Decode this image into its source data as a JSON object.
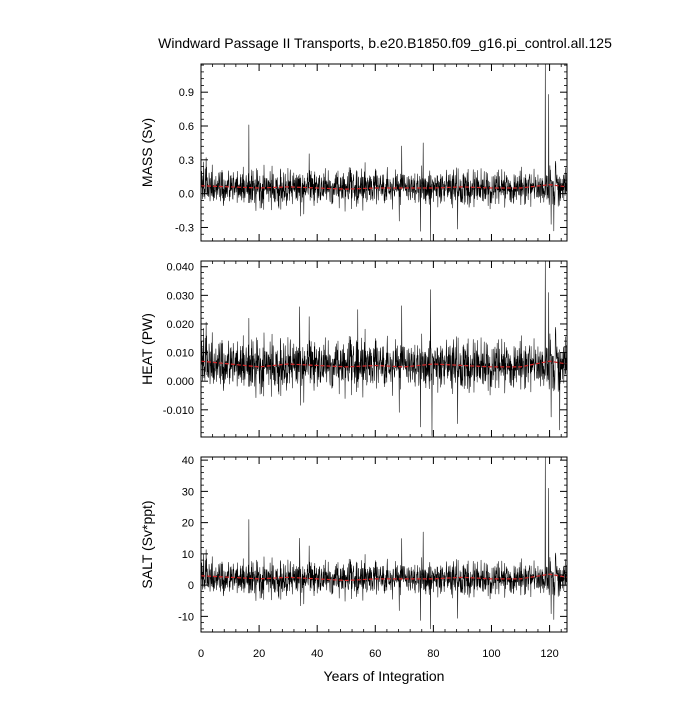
{
  "title": "Windward Passage II Transports, b.e20.B1850.f09_g16.pi_control.all.125",
  "chart_data": {
    "type": "line",
    "title": "Windward Passage II Transports, b.e20.B1850.f09_g16.pi_control.all.125",
    "xlabel": "Years of Integration",
    "xlim": [
      0,
      126
    ],
    "x_ticks": [
      0,
      20,
      40,
      60,
      80,
      100,
      120
    ],
    "x_tick_labels": [
      "0",
      "20",
      "40",
      "60",
      "80",
      "100",
      "120"
    ],
    "colors": {
      "raw": "#000000",
      "smoothed": "#d62728"
    },
    "panels": [
      {
        "ylabel": "MASS (Sv)",
        "ylim": [
          -0.42,
          1.15
        ],
        "y_ticks": [
          -0.3,
          0.0,
          0.3,
          0.6,
          0.9
        ],
        "y_tick_labels": [
          "-0.3",
          "0.0",
          "0.3",
          "0.6",
          "0.9"
        ],
        "mean": 0.05,
        "noise_sd": 0.075,
        "spikes": [
          [
            16.5,
            0.61
          ],
          [
            118.5,
            1.15
          ],
          [
            119.7,
            0.88
          ],
          [
            79.0,
            -0.42
          ],
          [
            76.5,
            0.45
          ],
          [
            121.5,
            -0.33
          ]
        ],
        "smoothed": {
          "x": [
            0,
            10,
            20,
            30,
            40,
            50,
            60,
            70,
            80,
            90,
            100,
            110,
            120,
            126
          ],
          "y": [
            0.07,
            0.06,
            0.05,
            0.06,
            0.05,
            0.04,
            0.05,
            0.05,
            0.05,
            0.06,
            0.05,
            0.05,
            0.08,
            0.06
          ]
        }
      },
      {
        "ylabel": "HEAT (PW)",
        "ylim": [
          -0.0195,
          0.042
        ],
        "y_ticks": [
          -0.01,
          0.0,
          0.01,
          0.02,
          0.03,
          0.04
        ],
        "y_tick_labels": [
          "-0.010",
          "0.000",
          "0.010",
          "0.020",
          "0.030",
          "0.040"
        ],
        "mean": 0.0055,
        "noise_sd": 0.0042,
        "spikes": [
          [
            16.5,
            0.022
          ],
          [
            34.0,
            0.026
          ],
          [
            54.0,
            0.025
          ],
          [
            79.0,
            0.032
          ],
          [
            79.5,
            -0.019
          ],
          [
            118.5,
            0.042
          ],
          [
            119.7,
            0.031
          ],
          [
            123.5,
            -0.017
          ]
        ],
        "smoothed": {
          "x": [
            0,
            10,
            20,
            30,
            40,
            50,
            60,
            70,
            80,
            90,
            100,
            110,
            120,
            126
          ],
          "y": [
            0.007,
            0.006,
            0.005,
            0.006,
            0.0055,
            0.005,
            0.0055,
            0.005,
            0.006,
            0.0055,
            0.005,
            0.005,
            0.007,
            0.006
          ]
        }
      },
      {
        "ylabel": "SALT (Sv*ppt)",
        "ylim": [
          -15,
          41
        ],
        "y_ticks": [
          -10,
          0,
          10,
          20,
          30,
          40
        ],
        "y_tick_labels": [
          "-10",
          "0",
          "10",
          "20",
          "30",
          "40"
        ],
        "mean": 2.0,
        "noise_sd": 2.6,
        "spikes": [
          [
            16.5,
            21
          ],
          [
            34.0,
            15
          ],
          [
            76.5,
            17
          ],
          [
            79.0,
            -14
          ],
          [
            118.5,
            41
          ],
          [
            119.7,
            31
          ],
          [
            121.5,
            -11
          ]
        ],
        "smoothed": {
          "x": [
            0,
            10,
            20,
            30,
            40,
            50,
            60,
            70,
            80,
            90,
            100,
            110,
            120,
            126
          ],
          "y": [
            3.0,
            2.5,
            2.0,
            2.5,
            2.0,
            1.5,
            2.0,
            2.0,
            2.0,
            2.5,
            2.0,
            2.0,
            3.5,
            2.5
          ]
        }
      }
    ]
  }
}
